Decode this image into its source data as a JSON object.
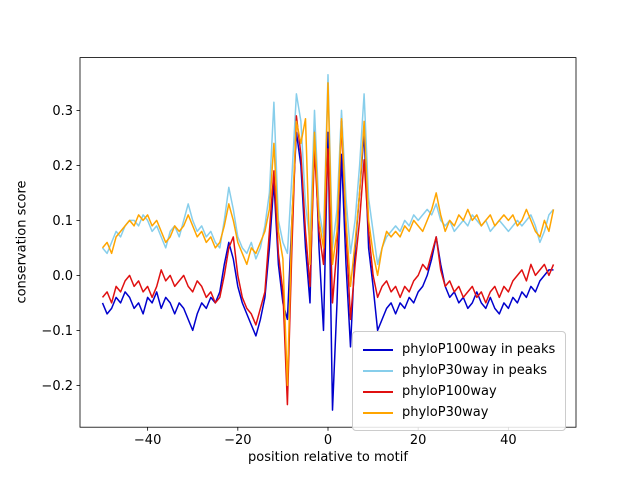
{
  "chart_data": {
    "type": "line",
    "title": "",
    "xlabel": "position relative to motif",
    "ylabel": "conservation score",
    "xlim": [
      -55,
      55
    ],
    "ylim": [
      -0.276,
      0.396
    ],
    "grid": false,
    "legend_position": "lower right",
    "xticks": [
      {
        "value": -40,
        "label": "−40"
      },
      {
        "value": -20,
        "label": "−20"
      },
      {
        "value": 0,
        "label": "0"
      },
      {
        "value": 20,
        "label": "20"
      },
      {
        "value": 40,
        "label": "40"
      }
    ],
    "yticks": [
      {
        "value": -0.2,
        "label": "−0.2"
      },
      {
        "value": -0.1,
        "label": "−0.1"
      },
      {
        "value": 0.0,
        "label": "0.0"
      },
      {
        "value": 0.1,
        "label": "0.1"
      },
      {
        "value": 0.2,
        "label": "0.2"
      },
      {
        "value": 0.3,
        "label": "0.3"
      }
    ],
    "x": [
      -50,
      -49,
      -48,
      -47,
      -46,
      -45,
      -44,
      -43,
      -42,
      -41,
      -40,
      -39,
      -38,
      -37,
      -36,
      -35,
      -34,
      -33,
      -32,
      -31,
      -30,
      -29,
      -28,
      -27,
      -26,
      -25,
      -24,
      -23,
      -22,
      -21,
      -20,
      -19,
      -18,
      -17,
      -16,
      -15,
      -14,
      -13,
      -12,
      -11,
      -10,
      -9,
      -8,
      -7,
      -6,
      -5,
      -4,
      -3,
      -2,
      -1,
      0,
      1,
      2,
      3,
      4,
      5,
      6,
      7,
      8,
      9,
      10,
      11,
      12,
      13,
      14,
      15,
      16,
      17,
      18,
      19,
      20,
      21,
      22,
      23,
      24,
      25,
      26,
      27,
      28,
      29,
      30,
      31,
      32,
      33,
      34,
      35,
      36,
      37,
      38,
      39,
      40,
      41,
      42,
      43,
      44,
      45,
      46,
      47,
      48,
      49,
      50
    ],
    "series": [
      {
        "name": "phyloP100way in peaks",
        "color": "#0000cd",
        "values": [
          -0.05,
          -0.07,
          -0.06,
          -0.04,
          -0.05,
          -0.03,
          -0.04,
          -0.06,
          -0.05,
          -0.07,
          -0.04,
          -0.05,
          -0.03,
          -0.06,
          -0.04,
          -0.05,
          -0.07,
          -0.05,
          -0.06,
          -0.08,
          -0.1,
          -0.07,
          -0.05,
          -0.06,
          -0.04,
          -0.05,
          -0.03,
          0.02,
          0.06,
          0.03,
          -0.02,
          -0.05,
          -0.07,
          -0.09,
          -0.11,
          -0.08,
          -0.04,
          0.05,
          0.17,
          0.02,
          -0.05,
          -0.08,
          0.1,
          0.26,
          0.2,
          0.05,
          -0.05,
          0.28,
          0.05,
          -0.1,
          0.26,
          -0.245,
          -0.05,
          0.22,
          0.02,
          -0.13,
          0.05,
          0.15,
          0.26,
          0.05,
          -0.02,
          -0.1,
          -0.08,
          -0.06,
          -0.05,
          -0.07,
          -0.05,
          -0.06,
          -0.04,
          -0.05,
          -0.03,
          -0.02,
          0.0,
          0.03,
          0.07,
          0.02,
          -0.02,
          -0.04,
          -0.03,
          -0.05,
          -0.04,
          -0.06,
          -0.05,
          -0.03,
          -0.05,
          -0.06,
          -0.04,
          -0.06,
          -0.07,
          -0.05,
          -0.06,
          -0.04,
          -0.05,
          -0.03,
          -0.04,
          -0.02,
          -0.03,
          -0.01,
          0.0,
          0.01,
          0.01
        ]
      },
      {
        "name": "phyloP30way in peaks",
        "color": "#87ceeb",
        "values": [
          0.05,
          0.04,
          0.06,
          0.08,
          0.07,
          0.09,
          0.1,
          0.1,
          0.09,
          0.11,
          0.1,
          0.08,
          0.09,
          0.07,
          0.05,
          0.08,
          0.09,
          0.07,
          0.1,
          0.13,
          0.1,
          0.08,
          0.09,
          0.07,
          0.08,
          0.06,
          0.05,
          0.1,
          0.16,
          0.12,
          0.07,
          0.05,
          0.04,
          0.06,
          0.03,
          0.05,
          0.09,
          0.15,
          0.315,
          0.1,
          0.06,
          0.04,
          0.18,
          0.33,
          0.28,
          0.13,
          0.06,
          0.3,
          0.12,
          0.07,
          0.365,
          0.05,
          0.12,
          0.3,
          0.14,
          0.04,
          0.1,
          0.2,
          0.33,
          0.14,
          0.08,
          0.02,
          0.05,
          0.07,
          0.08,
          0.09,
          0.08,
          0.1,
          0.09,
          0.11,
          0.1,
          0.11,
          0.12,
          0.11,
          0.13,
          0.1,
          0.09,
          0.1,
          0.08,
          0.09,
          0.1,
          0.09,
          0.11,
          0.1,
          0.09,
          0.1,
          0.08,
          0.09,
          0.1,
          0.09,
          0.08,
          0.09,
          0.1,
          0.09,
          0.1,
          0.11,
          0.09,
          0.06,
          0.08,
          0.11,
          0.12
        ]
      },
      {
        "name": "phyloP100way",
        "color": "#e01010",
        "values": [
          -0.04,
          -0.03,
          -0.05,
          -0.02,
          -0.03,
          -0.01,
          0.0,
          -0.02,
          -0.01,
          -0.03,
          -0.02,
          -0.04,
          -0.02,
          0.01,
          -0.01,
          0.0,
          -0.02,
          -0.01,
          0.0,
          -0.02,
          -0.03,
          -0.01,
          -0.02,
          -0.04,
          -0.03,
          -0.05,
          -0.04,
          0.0,
          0.05,
          0.07,
          0.0,
          -0.04,
          -0.06,
          -0.07,
          -0.09,
          -0.06,
          -0.03,
          0.08,
          0.19,
          0.04,
          -0.03,
          -0.235,
          0.05,
          0.29,
          0.22,
          0.08,
          -0.02,
          0.23,
          0.08,
          0.02,
          0.23,
          -0.05,
          0.05,
          0.28,
          0.08,
          -0.08,
          0.02,
          0.1,
          0.21,
          0.08,
          0.0,
          -0.04,
          -0.02,
          -0.01,
          -0.03,
          -0.02,
          -0.04,
          -0.02,
          -0.03,
          -0.01,
          0.0,
          0.02,
          0.01,
          0.04,
          0.07,
          0.01,
          -0.02,
          -0.01,
          -0.03,
          -0.02,
          -0.04,
          -0.03,
          -0.02,
          -0.04,
          -0.03,
          -0.05,
          -0.03,
          -0.02,
          -0.04,
          -0.02,
          -0.03,
          -0.01,
          0.0,
          0.01,
          -0.01,
          0.02,
          0.0,
          0.01,
          0.02,
          0.0,
          0.02
        ]
      },
      {
        "name": "phyloP30way",
        "color": "#ffa500",
        "values": [
          0.05,
          0.06,
          0.04,
          0.07,
          0.08,
          0.09,
          0.1,
          0.09,
          0.11,
          0.1,
          0.11,
          0.09,
          0.1,
          0.08,
          0.06,
          0.07,
          0.09,
          0.08,
          0.09,
          0.11,
          0.09,
          0.07,
          0.08,
          0.06,
          0.07,
          0.05,
          0.06,
          0.09,
          0.13,
          0.1,
          0.06,
          0.04,
          0.02,
          0.05,
          0.04,
          0.06,
          0.08,
          0.12,
          0.24,
          0.08,
          0.03,
          -0.2,
          0.1,
          0.28,
          0.24,
          0.285,
          0.02,
          0.26,
          0.1,
          0.05,
          0.35,
          0.02,
          0.08,
          0.285,
          0.1,
          -0.02,
          0.06,
          0.15,
          0.28,
          0.1,
          0.04,
          0.0,
          0.05,
          0.08,
          0.07,
          0.08,
          0.07,
          0.09,
          0.08,
          0.1,
          0.09,
          0.08,
          0.1,
          0.12,
          0.15,
          0.11,
          0.08,
          0.1,
          0.09,
          0.11,
          0.1,
          0.12,
          0.1,
          0.11,
          0.09,
          0.1,
          0.11,
          0.09,
          0.1,
          0.11,
          0.1,
          0.11,
          0.09,
          0.1,
          0.12,
          0.1,
          0.08,
          0.07,
          0.1,
          0.08,
          0.12
        ]
      }
    ]
  }
}
